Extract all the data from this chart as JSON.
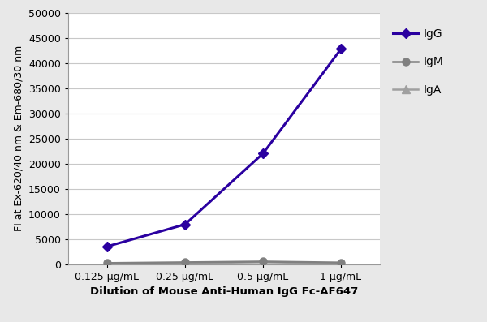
{
  "x_labels": [
    "0.125 μg/mL",
    "0.25 μg/mL",
    "0.5 μg/mL",
    "1 μg/mL"
  ],
  "x_values": [
    1,
    2,
    3,
    4
  ],
  "IgG_values": [
    3500,
    7900,
    22000,
    42800
  ],
  "IgM_values": [
    200,
    350,
    500,
    300
  ],
  "IgA_values": [
    100,
    200,
    350,
    150
  ],
  "IgG_color": "#2a00a0",
  "IgM_color": "#808080",
  "IgA_color": "#a0a0a0",
  "ylabel": "FI at Ex-620/40 nm & Em-680/30 nm",
  "xlabel": "Dilution of Mouse Anti-Human IgG Fc-AF647",
  "ylim": [
    0,
    50000
  ],
  "yticks": [
    0,
    5000,
    10000,
    15000,
    20000,
    25000,
    30000,
    35000,
    40000,
    45000,
    50000
  ],
  "background_color": "#e8e8e8",
  "plot_bg_color": "#ffffff",
  "grid_color": "#c8c8c8",
  "legend_labels": [
    "IgG",
    "IgM",
    "IgA"
  ],
  "axis_label_fontsize": 9.5,
  "tick_fontsize": 9,
  "legend_fontsize": 10,
  "ylabel_fontsize": 9
}
